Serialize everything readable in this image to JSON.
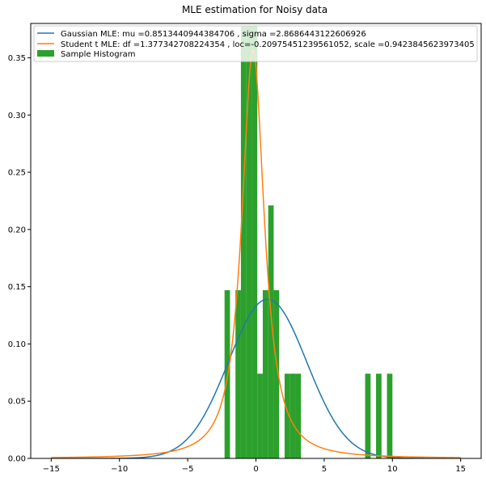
{
  "chart_data": {
    "type": "bar",
    "title": "MLE estimation for Noisy data",
    "xlabel": "",
    "ylabel": "",
    "xlim": [
      -16.5,
      16.5
    ],
    "ylim": [
      0,
      0.38
    ],
    "x_ticks": [
      -15,
      -10,
      -5,
      0,
      5,
      10,
      15
    ],
    "y_ticks": [
      0.0,
      0.05,
      0.1,
      0.15,
      0.2,
      0.25,
      0.3,
      0.35
    ],
    "x_tick_labels": [
      "−15",
      "−10",
      "−5",
      "0",
      "5",
      "10",
      "15"
    ],
    "y_tick_labels": [
      "0.00",
      "0.05",
      "0.10",
      "0.15",
      "0.20",
      "0.25",
      "0.30",
      "0.35"
    ],
    "legend_position": "top-left",
    "legend": [
      {
        "label": "Gaussian MLE: mu =0.8513440944384706 , sigma =2.8686443122606926",
        "kind": "line",
        "color": "#1f77b4"
      },
      {
        "label": "Student t MLE: df =1.377342708224354 , loc=-0.20975451239561052, scale =0.9423845623973405",
        "kind": "line",
        "color": "#ff7f0e"
      },
      {
        "label": "Sample Histogram",
        "kind": "patch",
        "color": "#2ca02c"
      }
    ],
    "histogram": {
      "name": "Sample Histogram",
      "color": "#2ca02c",
      "bin_width": 0.4,
      "bins": [
        {
          "left": -2.3,
          "value": 0.147
        },
        {
          "left": -1.5,
          "value": 0.147
        },
        {
          "left": -1.1,
          "value": 0.378
        },
        {
          "left": -0.7,
          "value": 0.378
        },
        {
          "left": -0.3,
          "value": 0.378
        },
        {
          "left": 0.1,
          "value": 0.074
        },
        {
          "left": 0.5,
          "value": 0.147
        },
        {
          "left": 0.9,
          "value": 0.221
        },
        {
          "left": 1.3,
          "value": 0.147
        },
        {
          "left": 2.1,
          "value": 0.074
        },
        {
          "left": 2.5,
          "value": 0.074
        },
        {
          "left": 2.9,
          "value": 0.074
        },
        {
          "left": 8.0,
          "value": 0.074
        },
        {
          "left": 8.8,
          "value": 0.074
        },
        {
          "left": 9.6,
          "value": 0.074
        }
      ]
    },
    "series": [
      {
        "name": "Gaussian MLE",
        "kind": "normal",
        "mu": 0.8513440944384706,
        "sigma": 2.8686443122606926,
        "x_range": [
          -15,
          15
        ],
        "color": "#1f77b4"
      },
      {
        "name": "Student t MLE",
        "kind": "student_t",
        "df": 1.377342708224354,
        "loc": -0.20975451239561052,
        "scale": 0.9423845623973405,
        "x_range": [
          -15,
          15
        ],
        "color": "#ff7f0e"
      }
    ]
  }
}
